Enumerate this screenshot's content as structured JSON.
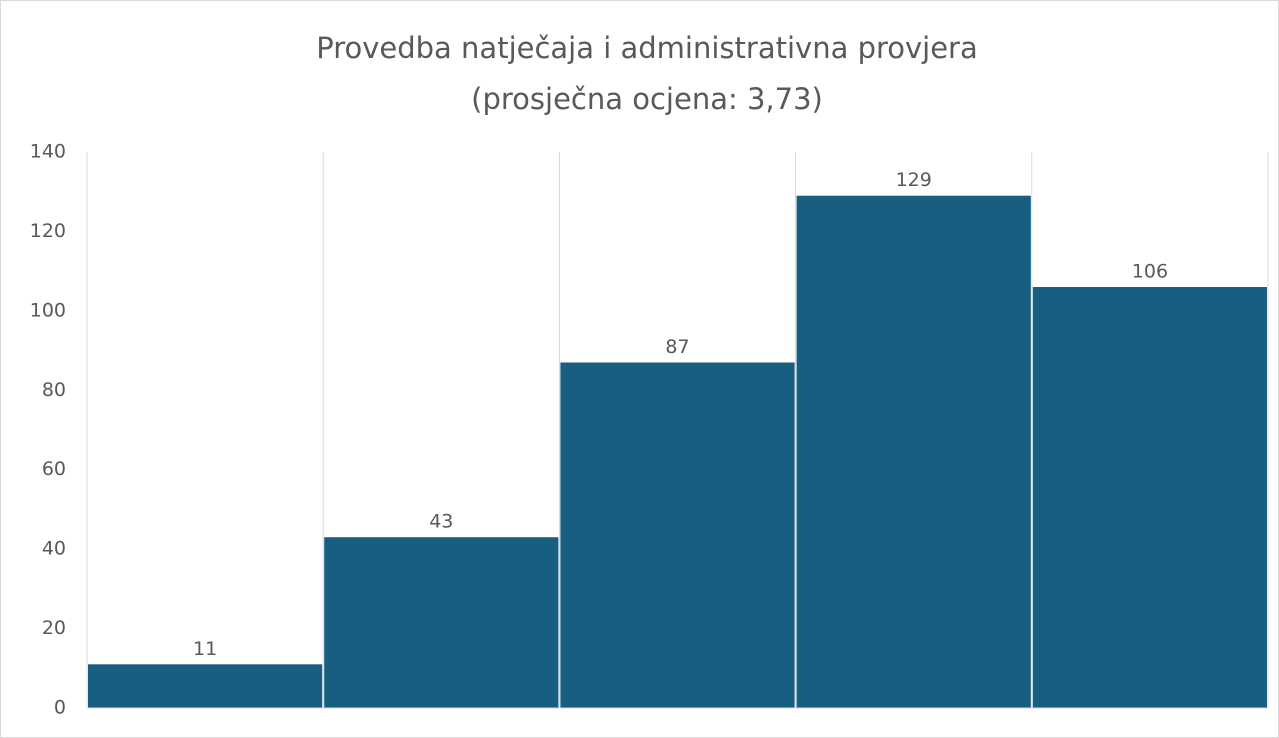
{
  "chart_data": {
    "type": "bar",
    "title": "Provedba natječaja i administrativna provjera",
    "subtitle": "(prosječna ocjena: 3,73)",
    "categories": [
      null,
      null,
      null,
      null,
      null
    ],
    "values": [
      11,
      43,
      87,
      129,
      106
    ],
    "color": "#175e80",
    "ylim": [
      0,
      140
    ],
    "yticks": [
      0,
      20,
      40,
      60,
      80,
      100,
      120,
      140
    ],
    "grid": false,
    "category_grid": true,
    "data_labels": true
  }
}
